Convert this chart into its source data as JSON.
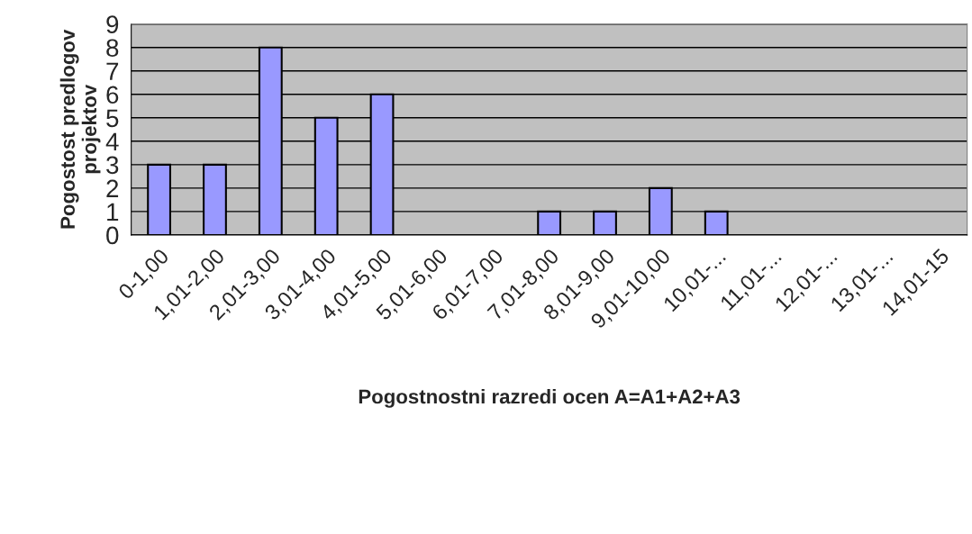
{
  "chart_data": {
    "type": "bar",
    "categories": [
      "0-1,00",
      "1,01-2,00",
      "2,01-3,00",
      "3,01-4,00",
      "4,01-5,00",
      "5,01-6,00",
      "6,01-7,00",
      "7,01-8,00",
      "8,01-9,00",
      "9,01-10,00",
      "10,01-...",
      "11,01-...",
      "12,01-...",
      "13,01-...",
      "14,01-15"
    ],
    "values": [
      3,
      3,
      8,
      5,
      6,
      0,
      0,
      1,
      1,
      2,
      1,
      0,
      0,
      0,
      0
    ],
    "color": "#9999ff",
    "xlabel": "Pogostnostni razredi ocen A=A1+A2+A3",
    "ylabel": "Pogostost predlogov projektov",
    "ylim": [
      0,
      9
    ],
    "yticks": [
      0,
      1,
      2,
      3,
      4,
      5,
      6,
      7,
      8,
      9
    ],
    "grid": "y"
  }
}
